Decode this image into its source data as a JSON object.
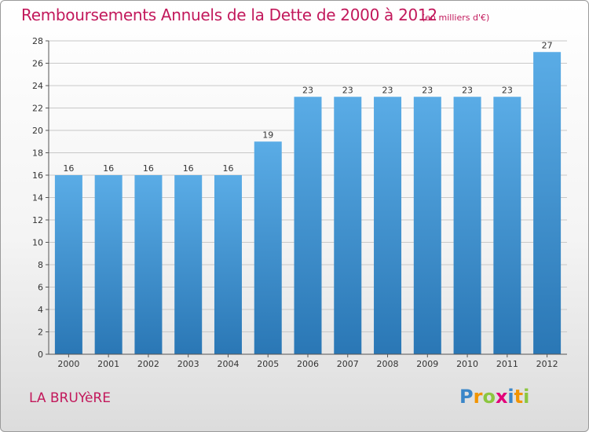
{
  "title": "Remboursements Annuels de la Dette de 2000 à 2012",
  "subtitle": "(en milliers d'€)",
  "location": "LA BRUYèRE",
  "brand": {
    "name": "Proxiti",
    "letters": [
      {
        "char": "P",
        "color": "#3a86c8"
      },
      {
        "char": "r",
        "color": "#f29400"
      },
      {
        "char": "o",
        "color": "#8cc63f"
      },
      {
        "char": "x",
        "color": "#e2007a"
      },
      {
        "char": "i",
        "color": "#3a86c8"
      },
      {
        "char": "t",
        "color": "#f29400"
      },
      {
        "char": "i",
        "color": "#8cc63f"
      }
    ]
  },
  "colors": {
    "title": "#c2185b",
    "bar_top": "#5aace6",
    "bar_bottom": "#2a77b5",
    "grid": "#c8c8c8",
    "axis": "#555555"
  },
  "chart_data": {
    "type": "bar",
    "categories": [
      "2000",
      "2001",
      "2002",
      "2003",
      "2004",
      "2005",
      "2006",
      "2007",
      "2008",
      "2009",
      "2010",
      "2011",
      "2012"
    ],
    "values": [
      16,
      16,
      16,
      16,
      16,
      19,
      23,
      23,
      23,
      23,
      23,
      23,
      27
    ],
    "ylim": [
      0,
      28
    ],
    "yticks": [
      0,
      2,
      4,
      6,
      8,
      10,
      12,
      14,
      16,
      18,
      20,
      22,
      24,
      26,
      28
    ],
    "grid": true,
    "xlabel": "",
    "ylabel": ""
  }
}
